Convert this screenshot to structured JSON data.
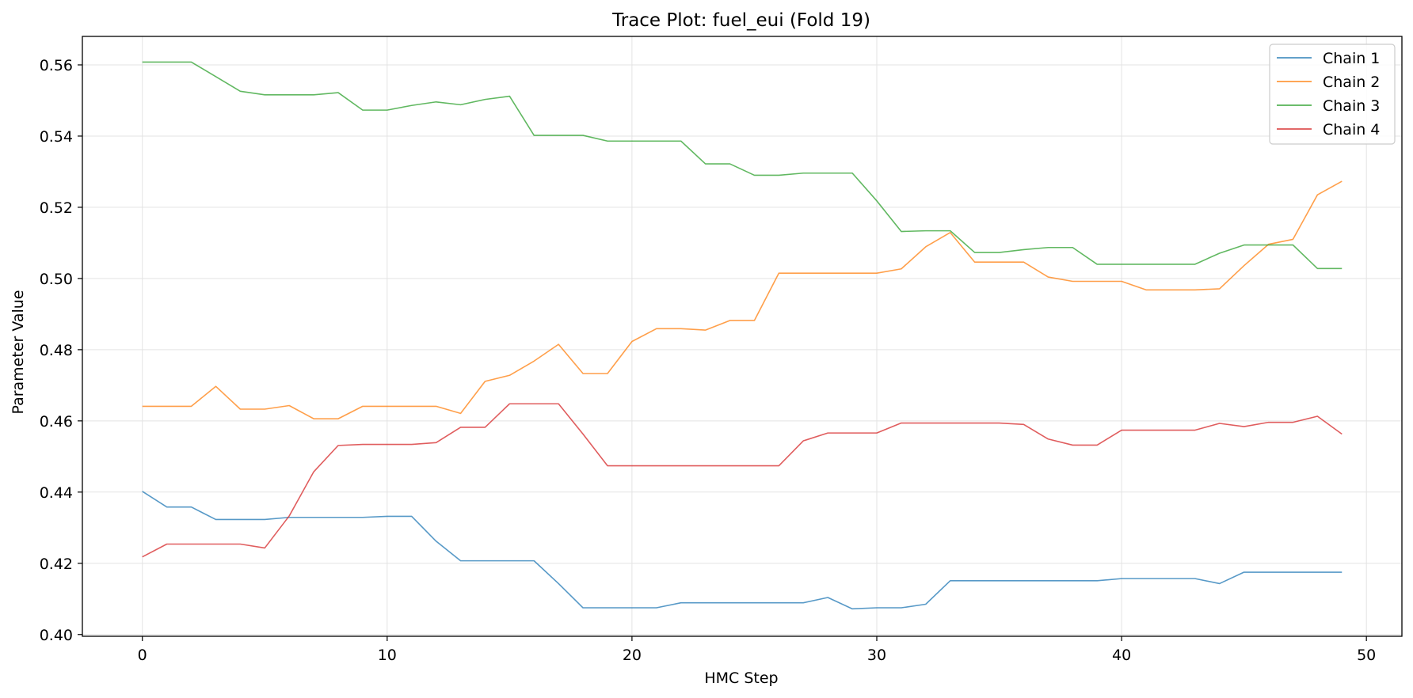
{
  "chart_data": {
    "type": "line",
    "title": "Trace Plot: fuel_eui (Fold 19)",
    "xlabel": "HMC Step",
    "ylabel": "Parameter Value",
    "xlim": [
      -2.45,
      51.45
    ],
    "ylim": [
      0.3995,
      0.568
    ],
    "xticks": [
      0,
      10,
      20,
      30,
      40,
      50
    ],
    "yticks": [
      0.4,
      0.42,
      0.44,
      0.46,
      0.48,
      0.5,
      0.52,
      0.54,
      0.56
    ],
    "xtick_labels": [
      "0",
      "10",
      "20",
      "30",
      "40",
      "50"
    ],
    "ytick_labels": [
      "0.40",
      "0.42",
      "0.44",
      "0.46",
      "0.48",
      "0.50",
      "0.52",
      "0.54",
      "0.56"
    ],
    "grid": true,
    "legend_position": "top-right",
    "x": [
      0,
      1,
      2,
      3,
      4,
      5,
      6,
      7,
      8,
      9,
      10,
      11,
      12,
      13,
      14,
      15,
      16,
      17,
      18,
      19,
      20,
      21,
      22,
      23,
      24,
      25,
      26,
      27,
      28,
      29,
      30,
      31,
      32,
      33,
      34,
      35,
      36,
      37,
      38,
      39,
      40,
      41,
      42,
      43,
      44,
      45,
      46,
      47,
      48,
      49
    ],
    "series": [
      {
        "name": "Chain 1",
        "color": "#1f77b4",
        "values": [
          0.4402,
          0.4358,
          0.4358,
          0.4323,
          0.4323,
          0.4323,
          0.4329,
          0.4329,
          0.4329,
          0.4329,
          0.4332,
          0.4332,
          0.4262,
          0.4207,
          0.4207,
          0.4207,
          0.4207,
          0.4143,
          0.4075,
          0.4075,
          0.4075,
          0.4075,
          0.4089,
          0.4089,
          0.4089,
          0.4089,
          0.4089,
          0.4089,
          0.4104,
          0.4072,
          0.4075,
          0.4075,
          0.4085,
          0.4151,
          0.4151,
          0.4151,
          0.4151,
          0.4151,
          0.4151,
          0.4151,
          0.4157,
          0.4157,
          0.4157,
          0.4157,
          0.4143,
          0.4175,
          0.4175,
          0.4175,
          0.4175,
          0.4175
        ]
      },
      {
        "name": "Chain 2",
        "color": "#ff7f0e",
        "values": [
          0.4641,
          0.4641,
          0.4641,
          0.4697,
          0.4633,
          0.4633,
          0.4643,
          0.4606,
          0.4606,
          0.4641,
          0.4641,
          0.4641,
          0.4641,
          0.4621,
          0.4711,
          0.4728,
          0.4768,
          0.4815,
          0.4733,
          0.4733,
          0.4823,
          0.4859,
          0.4859,
          0.4855,
          0.4882,
          0.4882,
          0.5015,
          0.5015,
          0.5015,
          0.5015,
          0.5015,
          0.5027,
          0.5089,
          0.5129,
          0.5046,
          0.5046,
          0.5046,
          0.5004,
          0.4992,
          0.4992,
          0.4992,
          0.4968,
          0.4968,
          0.4968,
          0.4971,
          0.5036,
          0.5096,
          0.511,
          0.5235,
          0.5273
        ]
      },
      {
        "name": "Chain 3",
        "color": "#2ca02c",
        "values": [
          0.5608,
          0.5608,
          0.5608,
          0.5567,
          0.5526,
          0.5516,
          0.5516,
          0.5516,
          0.5522,
          0.5473,
          0.5473,
          0.5486,
          0.5496,
          0.5488,
          0.5503,
          0.5512,
          0.5402,
          0.5402,
          0.5402,
          0.5386,
          0.5386,
          0.5386,
          0.5386,
          0.5322,
          0.5322,
          0.529,
          0.529,
          0.5296,
          0.5296,
          0.5296,
          0.5218,
          0.5132,
          0.5134,
          0.5134,
          0.5073,
          0.5073,
          0.5081,
          0.5087,
          0.5087,
          0.504,
          0.504,
          0.504,
          0.504,
          0.504,
          0.5071,
          0.5094,
          0.5094,
          0.5094,
          0.5028,
          0.5028
        ]
      },
      {
        "name": "Chain 4",
        "color": "#d62728",
        "values": [
          0.4218,
          0.4254,
          0.4254,
          0.4254,
          0.4254,
          0.4243,
          0.4333,
          0.4457,
          0.4531,
          0.4534,
          0.4534,
          0.4534,
          0.4539,
          0.4582,
          0.4582,
          0.4648,
          0.4648,
          0.4648,
          0.4563,
          0.4474,
          0.4474,
          0.4474,
          0.4474,
          0.4474,
          0.4474,
          0.4474,
          0.4474,
          0.4544,
          0.4566,
          0.4566,
          0.4566,
          0.4594,
          0.4594,
          0.4594,
          0.4594,
          0.4594,
          0.459,
          0.4549,
          0.4532,
          0.4532,
          0.4574,
          0.4574,
          0.4574,
          0.4574,
          0.4593,
          0.4584,
          0.4596,
          0.4596,
          0.4613,
          0.4563
        ]
      }
    ]
  }
}
